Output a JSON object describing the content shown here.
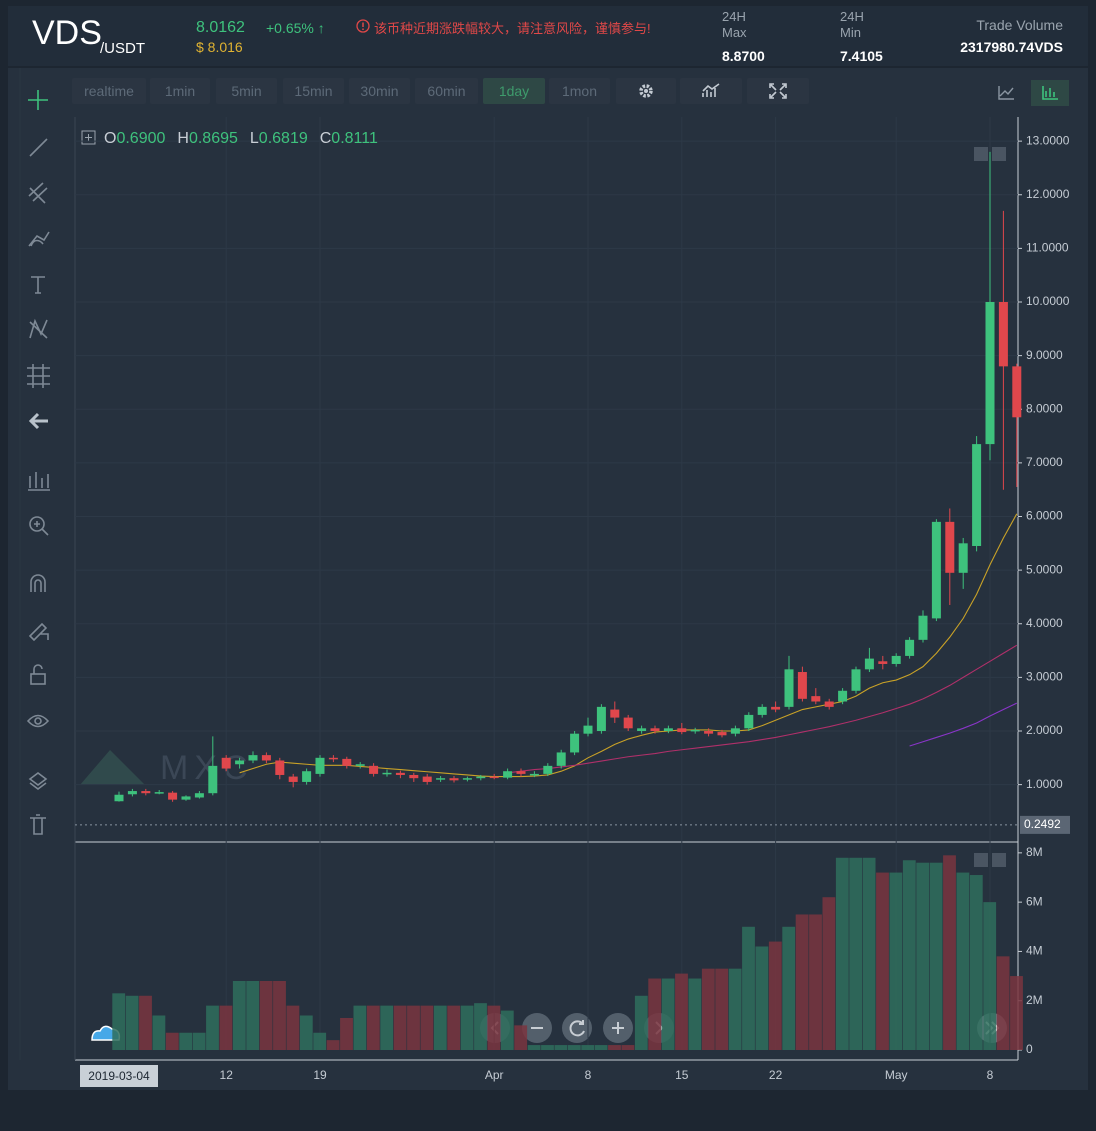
{
  "header": {
    "symbol": "VDS",
    "pair": "/USDT",
    "price": "8.0162",
    "change": "+0.65% ↑",
    "price_usd": "$ 8.016",
    "warning": "该币种近期涨跌幅较大，请注意风险，谨慎参与!",
    "stats": [
      {
        "label": "24H Max",
        "value": "8.8700"
      },
      {
        "label": "24H Min",
        "value": "7.4105"
      },
      {
        "label": "Trade Volume",
        "value": "2317980.74VDS"
      }
    ]
  },
  "toolbar": {
    "intervals": [
      "realtime",
      "1min",
      "5min",
      "15min",
      "30min",
      "60min",
      "1day",
      "1mon"
    ],
    "active": 6
  },
  "ohlc_legend": [
    {
      "key": "O",
      "value": "0.6900"
    },
    {
      "key": "H",
      "value": "0.8695"
    },
    {
      "key": "L",
      "value": "0.6819"
    },
    {
      "key": "C",
      "value": "0.8111"
    }
  ],
  "watermark": "MXC",
  "chart_data": [
    {
      "type": "candlestick",
      "x": [
        "2019-03-04",
        "2019-03-05",
        "2019-03-06",
        "2019-03-07",
        "2019-03-08",
        "2019-03-09",
        "2019-03-10",
        "2019-03-11",
        "2019-03-12",
        "2019-03-13",
        "2019-03-14",
        "2019-03-15",
        "2019-03-16",
        "2019-03-17",
        "2019-03-18",
        "2019-03-19",
        "2019-03-20",
        "2019-03-21",
        "2019-03-22",
        "2019-03-23",
        "2019-03-24",
        "2019-03-25",
        "2019-03-26",
        "2019-03-27",
        "2019-03-28",
        "2019-03-29",
        "2019-03-30",
        "2019-03-31",
        "2019-04-01",
        "2019-04-02",
        "2019-04-03",
        "2019-04-04",
        "2019-04-05",
        "2019-04-06",
        "2019-04-07",
        "2019-04-08",
        "2019-04-09",
        "2019-04-10",
        "2019-04-11",
        "2019-04-12",
        "2019-04-13",
        "2019-04-14",
        "2019-04-15",
        "2019-04-16",
        "2019-04-17",
        "2019-04-18",
        "2019-04-19",
        "2019-04-20",
        "2019-04-21",
        "2019-04-22",
        "2019-04-23",
        "2019-04-24",
        "2019-04-25",
        "2019-04-26",
        "2019-04-27",
        "2019-04-28",
        "2019-04-29",
        "2019-04-30",
        "2019-05-01",
        "2019-05-02",
        "2019-05-03",
        "2019-05-04",
        "2019-05-05",
        "2019-05-06",
        "2019-05-07",
        "2019-05-08",
        "2019-05-09",
        "2019-05-10"
      ],
      "open": [
        0.69,
        0.82,
        0.88,
        0.85,
        0.85,
        0.72,
        0.76,
        0.84,
        1.5,
        1.38,
        1.45,
        1.55,
        1.45,
        1.15,
        1.05,
        1.2,
        1.5,
        1.48,
        1.35,
        1.35,
        1.2,
        1.22,
        1.18,
        1.15,
        1.1,
        1.12,
        1.1,
        1.12,
        1.15,
        1.13,
        1.25,
        1.18,
        1.2,
        1.35,
        1.6,
        1.95,
        2.0,
        2.4,
        2.25,
        2.0,
        2.05,
        2.0,
        2.05,
        2.0,
        2.0,
        1.98,
        1.95,
        2.05,
        2.3,
        2.45,
        2.45,
        3.1,
        2.65,
        2.55,
        2.55,
        2.75,
        3.15,
        3.3,
        3.25,
        3.4,
        3.7,
        4.1,
        5.9,
        4.95,
        5.45,
        7.35,
        10.0,
        8.8
      ],
      "high": [
        0.8695,
        0.92,
        0.92,
        0.9,
        0.88,
        0.8,
        0.88,
        1.9,
        1.55,
        1.5,
        1.62,
        1.6,
        1.5,
        1.2,
        1.3,
        1.55,
        1.55,
        1.52,
        1.42,
        1.4,
        1.28,
        1.26,
        1.22,
        1.2,
        1.16,
        1.16,
        1.15,
        1.18,
        1.2,
        1.3,
        1.3,
        1.25,
        1.4,
        1.65,
        2.0,
        2.25,
        2.5,
        2.55,
        2.3,
        2.1,
        2.1,
        2.1,
        2.15,
        2.06,
        2.05,
        2.02,
        2.1,
        2.35,
        2.5,
        2.55,
        3.4,
        3.2,
        2.8,
        2.6,
        2.8,
        3.2,
        3.55,
        3.4,
        3.45,
        3.75,
        4.25,
        5.95,
        6.15,
        5.6,
        7.5,
        12.8,
        11.7,
        8.85
      ],
      "low": [
        0.6819,
        0.78,
        0.8,
        0.82,
        0.68,
        0.7,
        0.74,
        0.8,
        1.25,
        1.3,
        1.4,
        1.4,
        1.1,
        0.95,
        1.0,
        1.15,
        1.42,
        1.3,
        1.3,
        1.15,
        1.15,
        1.12,
        1.05,
        1.0,
        1.05,
        1.04,
        1.06,
        1.08,
        1.1,
        1.1,
        1.15,
        1.14,
        1.16,
        1.3,
        1.55,
        1.9,
        1.95,
        2.15,
        2.0,
        1.95,
        1.95,
        1.96,
        1.94,
        1.95,
        1.9,
        1.88,
        1.9,
        2.0,
        2.25,
        2.35,
        2.4,
        2.55,
        2.5,
        2.4,
        2.5,
        2.7,
        3.1,
        3.15,
        3.2,
        3.35,
        3.65,
        4.05,
        4.35,
        4.65,
        5.35,
        7.05,
        6.5,
        6.55
      ],
      "close": [
        0.8111,
        0.88,
        0.84,
        0.86,
        0.72,
        0.78,
        0.84,
        1.35,
        1.3,
        1.45,
        1.55,
        1.45,
        1.18,
        1.05,
        1.25,
        1.5,
        1.48,
        1.35,
        1.38,
        1.2,
        1.22,
        1.18,
        1.12,
        1.05,
        1.12,
        1.08,
        1.12,
        1.15,
        1.13,
        1.25,
        1.2,
        1.2,
        1.35,
        1.6,
        1.95,
        2.1,
        2.45,
        2.25,
        2.05,
        2.05,
        2.0,
        2.05,
        1.98,
        2.02,
        1.95,
        1.92,
        2.05,
        2.3,
        2.45,
        2.4,
        3.15,
        2.6,
        2.55,
        2.45,
        2.75,
        3.15,
        3.35,
        3.25,
        3.4,
        3.7,
        4.15,
        5.9,
        4.95,
        5.5,
        7.35,
        10.0,
        8.8,
        7.85
      ],
      "up_color": "#3ec27d",
      "down_color": "#e0474c",
      "ylim": [
        -0.07,
        13.45
      ],
      "yticks": [
        {
          "value": 1,
          "label": "1.0000"
        },
        {
          "value": 2,
          "label": "2.0000"
        },
        {
          "value": 3,
          "label": "3.0000"
        },
        {
          "value": 4,
          "label": "4.0000"
        },
        {
          "value": 5,
          "label": "5.0000"
        },
        {
          "value": 6,
          "label": "6.0000"
        },
        {
          "value": 7,
          "label": "7.0000"
        },
        {
          "value": 8,
          "label": "8.0000"
        },
        {
          "value": 9,
          "label": "9.0000"
        },
        {
          "value": 10,
          "label": "10.0000"
        },
        {
          "value": 11,
          "label": "11.0000"
        },
        {
          "value": 12,
          "label": "12.0000"
        },
        {
          "value": 13,
          "label": "13.0000"
        }
      ],
      "xticks": [
        {
          "value": "2019-03-12",
          "label": "12"
        },
        {
          "value": "2019-03-19",
          "label": "19"
        },
        {
          "value": "2019-04-01",
          "label": "Apr"
        },
        {
          "value": "2019-04-08",
          "label": "8"
        },
        {
          "value": "2019-04-15",
          "label": "15"
        },
        {
          "value": "2019-04-22",
          "label": "22"
        },
        {
          "value": "2019-05-01",
          "label": "May"
        },
        {
          "value": "2019-05-08",
          "label": "8"
        }
      ],
      "grid": true,
      "last_price": 0.2492,
      "moving_averages": [
        {
          "color": "#c9a227",
          "values": [
            null,
            null,
            null,
            null,
            null,
            null,
            null,
            null,
            null,
            1.22,
            1.3,
            1.38,
            1.42,
            1.4,
            1.38,
            1.36,
            1.36,
            1.36,
            1.34,
            1.32,
            1.3,
            1.28,
            1.26,
            1.24,
            1.22,
            1.2,
            1.18,
            1.16,
            1.15,
            1.15,
            1.15,
            1.16,
            1.18,
            1.25,
            1.35,
            1.5,
            1.62,
            1.75,
            1.85,
            1.92,
            1.98,
            2.0,
            2.02,
            2.02,
            2.02,
            2.0,
            2.0,
            2.02,
            2.1,
            2.2,
            2.3,
            2.4,
            2.45,
            2.5,
            2.55,
            2.65,
            2.8,
            2.9,
            2.95,
            3.05,
            3.2,
            3.45,
            3.75,
            4.1,
            4.55,
            5.1,
            5.6,
            6.05
          ]
        },
        {
          "color": "#b0306a",
          "values": [
            null,
            null,
            null,
            null,
            null,
            null,
            null,
            null,
            null,
            null,
            null,
            null,
            null,
            null,
            null,
            null,
            null,
            null,
            null,
            null,
            null,
            null,
            null,
            null,
            null,
            null,
            null,
            null,
            null,
            1.22,
            1.25,
            1.28,
            1.3,
            1.33,
            1.36,
            1.4,
            1.44,
            1.48,
            1.52,
            1.55,
            1.58,
            1.62,
            1.65,
            1.68,
            1.71,
            1.74,
            1.77,
            1.8,
            1.84,
            1.88,
            1.93,
            1.98,
            2.03,
            2.08,
            2.14,
            2.2,
            2.27,
            2.34,
            2.42,
            2.5,
            2.6,
            2.72,
            2.85,
            3.0,
            3.15,
            3.3,
            3.45,
            3.6
          ]
        },
        {
          "color": "#8a35c9",
          "values": [
            null,
            null,
            null,
            null,
            null,
            null,
            null,
            null,
            null,
            null,
            null,
            null,
            null,
            null,
            null,
            null,
            null,
            null,
            null,
            null,
            null,
            null,
            null,
            null,
            null,
            null,
            null,
            null,
            null,
            null,
            null,
            null,
            null,
            null,
            null,
            null,
            null,
            null,
            null,
            null,
            null,
            null,
            null,
            null,
            null,
            null,
            null,
            null,
            null,
            null,
            null,
            null,
            null,
            null,
            null,
            null,
            null,
            null,
            null,
            1.72,
            1.8,
            1.88,
            1.96,
            2.05,
            2.15,
            2.28,
            2.4,
            2.52
          ]
        }
      ]
    },
    {
      "type": "bar",
      "values": [
        2300000,
        2200000,
        2200000,
        1400000,
        700000,
        700000,
        700000,
        1800000,
        1800000,
        2800000,
        2800000,
        2800000,
        2800000,
        1800000,
        1400000,
        700000,
        400000,
        1300000,
        1800000,
        1800000,
        1800000,
        1800000,
        1800000,
        1800000,
        1800000,
        1800000,
        1800000,
        1900000,
        1800000,
        1600000,
        1000000,
        200000,
        200000,
        200000,
        200000,
        200000,
        200000,
        200000,
        200000,
        2200000,
        2900000,
        2900000,
        3100000,
        2900000,
        3300000,
        3300000,
        3300000,
        5000000,
        4200000,
        4400000,
        5000000,
        5500000,
        5500000,
        6200000,
        7800000,
        7800000,
        7800000,
        7200000,
        7200000,
        7700000,
        7600000,
        7600000,
        7900000,
        7200000,
        7100000,
        6000000,
        3800000,
        3000000
      ],
      "up_color": "#2f6f5d",
      "down_color": "#7a3540",
      "ylim": [
        0,
        8400000
      ],
      "yticks": [
        0,
        {
          "value": 2000000,
          "label": "2M"
        },
        {
          "value": 4000000,
          "label": "4M"
        },
        {
          "value": 6000000,
          "label": "6M"
        },
        {
          "value": 8000000,
          "label": "8M"
        }
      ]
    }
  ]
}
